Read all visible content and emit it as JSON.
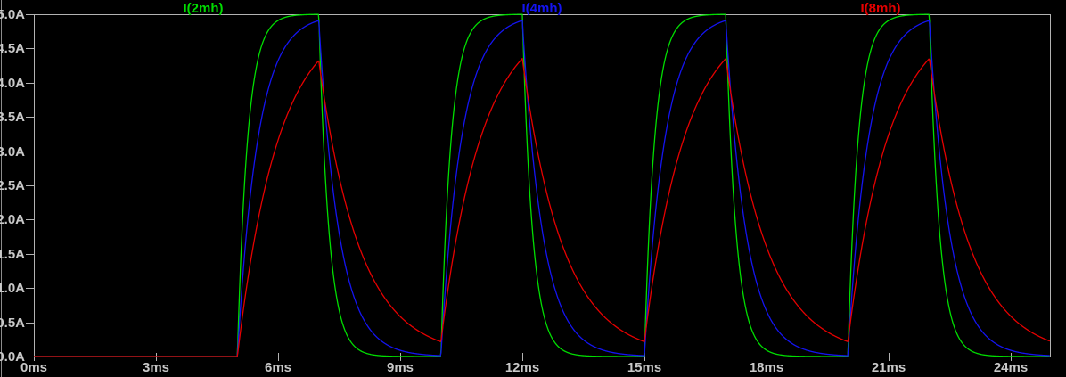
{
  "window": {
    "background_color": "#000000",
    "border_color": "#b2b2b2",
    "text_color": "#c8c8c8",
    "left_edge_color": "#8c8c8c"
  },
  "chart_data": {
    "type": "line",
    "title": "",
    "xlabel": "",
    "ylabel": "",
    "x_unit": "ms",
    "y_unit": "A",
    "xlim_ms": [
      0,
      24.96
    ],
    "ylim_A": [
      0,
      5.0
    ],
    "grid": false,
    "legend_position": "top-inside-evenly-spaced",
    "x_ticks": [
      {
        "t_ms": 0,
        "label": "0ms"
      },
      {
        "t_ms": 3,
        "label": "3ms"
      },
      {
        "t_ms": 6,
        "label": "6ms"
      },
      {
        "t_ms": 9,
        "label": "9ms"
      },
      {
        "t_ms": 12,
        "label": "12ms"
      },
      {
        "t_ms": 15,
        "label": "15ms"
      },
      {
        "t_ms": 18,
        "label": "18ms"
      },
      {
        "t_ms": 21,
        "label": "21ms"
      },
      {
        "t_ms": 24,
        "label": "24ms"
      }
    ],
    "y_ticks": [
      {
        "i_A": 0.0,
        "label": "0.0A"
      },
      {
        "i_A": 0.5,
        "label": "0.5A"
      },
      {
        "i_A": 1.0,
        "label": "1.0A"
      },
      {
        "i_A": 1.5,
        "label": "1.5A"
      },
      {
        "i_A": 2.0,
        "label": "2.0A"
      },
      {
        "i_A": 2.5,
        "label": "2.5A"
      },
      {
        "i_A": 3.0,
        "label": "3.0A"
      },
      {
        "i_A": 3.5,
        "label": "3.5A"
      },
      {
        "i_A": 4.0,
        "label": "4.0A"
      },
      {
        "i_A": 4.5,
        "label": "4.5A"
      },
      {
        "i_A": 5.0,
        "label": "5.0A"
      }
    ],
    "drive_pulse": {
      "amplitude_A": 5.0,
      "first_on_ms": 5.0,
      "on_duration_ms": 2.0,
      "period_ms": 5.0,
      "num_pulses": 4,
      "on_edges_ms": [
        5,
        10,
        15,
        20
      ],
      "off_edges_ms": [
        7,
        12,
        17,
        22
      ]
    },
    "series": [
      {
        "name": "I(2mh)",
        "color": "#00dd00",
        "tau_ms": 0.25,
        "peak_A": 5.0,
        "valley_A": 0.0
      },
      {
        "name": "I(4mh)",
        "color": "#1414f0",
        "tau_ms": 0.5,
        "peak_A": 4.91,
        "valley_A": 0.01
      },
      {
        "name": "I(8mh)",
        "color": "#e60000",
        "tau_ms": 1.0,
        "peak_A": 4.35,
        "valley_A": 0.22
      }
    ]
  }
}
